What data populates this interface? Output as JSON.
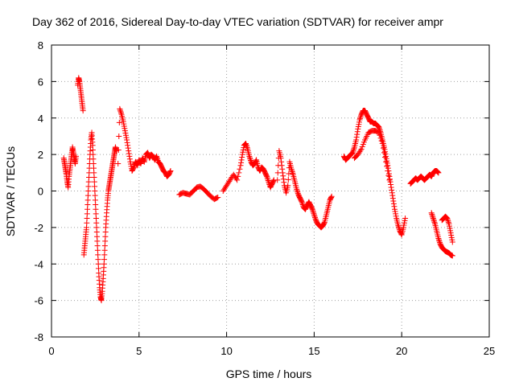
{
  "chart_data": {
    "type": "scatter",
    "title": "Day 362 of 2016, Sidereal Day-to-day VTEC variation (SDTVAR) for receiver ampr",
    "xlabel": "GPS time / hours",
    "ylabel": "SDTVAR / TECUs",
    "xlim": [
      0,
      25
    ],
    "ylim": [
      -8,
      8
    ],
    "xticks": [
      0,
      5,
      10,
      15,
      20,
      25
    ],
    "yticks": [
      -8,
      -6,
      -4,
      -2,
      0,
      2,
      4,
      6,
      8
    ],
    "grid": true,
    "marker": "+",
    "color": "#ff0000",
    "series": [
      {
        "name": "SDTVAR",
        "segments": [
          [
            [
              0.7,
              1.8
            ],
            [
              0.75,
              1.5
            ],
            [
              0.8,
              1.2
            ],
            [
              0.85,
              0.9
            ],
            [
              0.9,
              0.5
            ],
            [
              0.95,
              0.2
            ],
            [
              1.0,
              0.8
            ],
            [
              1.05,
              1.2
            ],
            [
              1.1,
              1.6
            ],
            [
              1.15,
              2.0
            ],
            [
              1.2,
              2.4
            ],
            [
              1.25,
              2.1
            ],
            [
              1.3,
              1.8
            ],
            [
              1.35,
              1.5
            ],
            [
              1.4,
              1.9
            ]
          ],
          [
            [
              1.5,
              5.8
            ],
            [
              1.55,
              6.2
            ],
            [
              1.6,
              6.0
            ],
            [
              1.65,
              5.6
            ],
            [
              1.7,
              5.2
            ],
            [
              1.75,
              4.8
            ],
            [
              1.8,
              4.4
            ]
          ],
          [
            [
              1.85,
              -3.5
            ],
            [
              1.9,
              -3.0
            ],
            [
              1.95,
              -2.5
            ],
            [
              2.0,
              -2.0
            ],
            [
              2.05,
              -1.0
            ],
            [
              2.1,
              0.0
            ],
            [
              2.15,
              1.0
            ],
            [
              2.2,
              2.0
            ],
            [
              2.25,
              2.8
            ],
            [
              2.3,
              3.2
            ],
            [
              2.35,
              2.5
            ],
            [
              2.4,
              1.5
            ],
            [
              2.45,
              0.5
            ],
            [
              2.5,
              -0.5
            ],
            [
              2.55,
              -1.5
            ],
            [
              2.6,
              -2.5
            ],
            [
              2.65,
              -3.5
            ],
            [
              2.7,
              -4.5
            ],
            [
              2.75,
              -5.3
            ],
            [
              2.8,
              -5.8
            ],
            [
              2.85,
              -6.0
            ],
            [
              2.9,
              -5.5
            ],
            [
              2.95,
              -4.8
            ],
            [
              3.0,
              -4.0
            ],
            [
              3.05,
              -3.0
            ],
            [
              3.1,
              -2.0
            ],
            [
              3.15,
              -1.2
            ],
            [
              3.2,
              -0.5
            ],
            [
              3.25,
              0.0
            ],
            [
              3.3,
              0.3
            ],
            [
              3.35,
              0.6
            ],
            [
              3.4,
              0.9
            ],
            [
              3.45,
              1.2
            ],
            [
              3.5,
              1.5
            ],
            [
              3.55,
              1.8
            ],
            [
              3.6,
              2.1
            ],
            [
              3.65,
              2.4
            ],
            [
              3.7,
              2.2
            ]
          ],
          [
            [
              3.8,
              1.5
            ],
            [
              3.9,
              4.5
            ],
            [
              4.0,
              4.2
            ],
            [
              4.1,
              3.8
            ],
            [
              4.2,
              3.3
            ],
            [
              4.3,
              2.8
            ],
            [
              4.4,
              2.2
            ],
            [
              4.5,
              1.6
            ],
            [
              4.6,
              1.1
            ],
            [
              4.7,
              1.3
            ],
            [
              4.8,
              1.6
            ],
            [
              4.9,
              1.4
            ],
            [
              5.0,
              1.7
            ],
            [
              5.1,
              1.5
            ],
            [
              5.2,
              1.8
            ],
            [
              5.3,
              1.6
            ],
            [
              5.4,
              2.0
            ],
            [
              5.5,
              2.1
            ],
            [
              5.6,
              1.8
            ],
            [
              5.7,
              2.0
            ],
            [
              5.8,
              1.9
            ],
            [
              5.9,
              1.7
            ],
            [
              6.0,
              1.9
            ],
            [
              6.1,
              1.6
            ],
            [
              6.2,
              1.5
            ],
            [
              6.3,
              1.3
            ],
            [
              6.4,
              1.1
            ],
            [
              6.5,
              1.0
            ],
            [
              6.6,
              0.8
            ],
            [
              6.7,
              0.9
            ],
            [
              6.8,
              1.1
            ]
          ],
          [
            [
              7.3,
              -0.2
            ],
            [
              7.5,
              -0.1
            ],
            [
              7.7,
              -0.15
            ],
            [
              7.9,
              -0.2
            ],
            [
              8.1,
              0.0
            ],
            [
              8.3,
              0.2
            ],
            [
              8.5,
              0.25
            ],
            [
              8.7,
              0.1
            ],
            [
              8.9,
              -0.1
            ],
            [
              9.1,
              -0.3
            ],
            [
              9.3,
              -0.45
            ],
            [
              9.5,
              -0.35
            ]
          ],
          [
            [
              9.8,
              0.0
            ],
            [
              10.0,
              0.3
            ],
            [
              10.2,
              0.6
            ],
            [
              10.4,
              0.9
            ],
            [
              10.6,
              0.6
            ],
            [
              10.8,
              1.4
            ],
            [
              10.9,
              2.0
            ],
            [
              11.0,
              2.5
            ],
            [
              11.1,
              2.6
            ],
            [
              11.2,
              2.3
            ],
            [
              11.3,
              1.9
            ],
            [
              11.4,
              1.6
            ],
            [
              11.5,
              1.4
            ],
            [
              11.6,
              1.5
            ],
            [
              11.7,
              1.7
            ],
            [
              11.8,
              1.3
            ],
            [
              11.9,
              1.1
            ],
            [
              12.0,
              1.3
            ],
            [
              12.1,
              1.2
            ],
            [
              12.2,
              1.0
            ],
            [
              12.3,
              0.8
            ],
            [
              12.4,
              0.5
            ],
            [
              12.5,
              0.2
            ],
            [
              12.6,
              0.4
            ],
            [
              12.7,
              0.6
            ]
          ],
          [
            [
              12.9,
              0.6
            ],
            [
              13.0,
              2.2
            ],
            [
              13.1,
              1.8
            ],
            [
              13.2,
              1.0
            ],
            [
              13.3,
              0.3
            ],
            [
              13.4,
              -0.1
            ],
            [
              13.5,
              0.3
            ],
            [
              13.6,
              1.6
            ],
            [
              13.7,
              1.2
            ],
            [
              13.8,
              0.9
            ],
            [
              13.9,
              0.5
            ],
            [
              14.0,
              0.1
            ],
            [
              14.1,
              -0.2
            ],
            [
              14.2,
              -0.4
            ],
            [
              14.3,
              -0.6
            ],
            [
              14.4,
              -0.9
            ],
            [
              14.5,
              -1.0
            ],
            [
              14.6,
              -0.8
            ],
            [
              14.7,
              -0.6
            ],
            [
              14.8,
              -0.8
            ],
            [
              14.9,
              -1.0
            ],
            [
              15.0,
              -1.3
            ],
            [
              15.1,
              -1.6
            ],
            [
              15.2,
              -1.8
            ],
            [
              15.3,
              -1.9
            ],
            [
              15.4,
              -2.0
            ],
            [
              15.5,
              -1.9
            ],
            [
              15.6,
              -1.7
            ],
            [
              15.7,
              -1.3
            ],
            [
              15.8,
              -0.9
            ],
            [
              15.9,
              -0.5
            ],
            [
              16.0,
              -0.3
            ]
          ],
          [
            [
              16.7,
              1.9
            ],
            [
              16.8,
              1.7
            ],
            [
              16.9,
              1.8
            ],
            [
              17.0,
              1.9
            ],
            [
              17.1,
              2.0
            ],
            [
              17.2,
              2.1
            ],
            [
              17.3,
              2.4
            ],
            [
              17.4,
              2.8
            ],
            [
              17.5,
              3.4
            ],
            [
              17.6,
              3.9
            ],
            [
              17.7,
              4.2
            ],
            [
              17.8,
              4.4
            ],
            [
              17.9,
              4.4
            ],
            [
              18.0,
              4.2
            ],
            [
              18.1,
              4.0
            ],
            [
              18.2,
              3.8
            ],
            [
              18.3,
              3.8
            ],
            [
              18.4,
              3.7
            ],
            [
              18.5,
              3.7
            ],
            [
              18.6,
              3.6
            ],
            [
              18.7,
              3.5
            ],
            [
              18.8,
              3.2
            ],
            [
              18.9,
              2.8
            ],
            [
              19.0,
              2.4
            ],
            [
              19.1,
              1.9
            ],
            [
              19.2,
              1.4
            ],
            [
              19.3,
              0.8
            ],
            [
              19.4,
              0.2
            ],
            [
              19.5,
              -0.4
            ],
            [
              19.6,
              -1.0
            ],
            [
              19.7,
              -1.5
            ],
            [
              19.8,
              -1.9
            ],
            [
              19.9,
              -2.2
            ],
            [
              20.0,
              -2.4
            ],
            [
              20.1,
              -2.0
            ],
            [
              20.2,
              -1.5
            ]
          ],
          [
            [
              17.3,
              1.8
            ],
            [
              17.5,
              2.0
            ],
            [
              17.7,
              2.3
            ],
            [
              17.9,
              2.8
            ],
            [
              18.1,
              3.2
            ],
            [
              18.3,
              3.3
            ],
            [
              18.5,
              3.3
            ],
            [
              18.7,
              3.2
            ],
            [
              18.9,
              2.6
            ],
            [
              19.1,
              1.6
            ],
            [
              19.3,
              0.6
            ]
          ],
          [
            [
              20.5,
              0.4
            ],
            [
              20.6,
              0.5
            ],
            [
              20.7,
              0.6
            ],
            [
              20.8,
              0.7
            ],
            [
              20.9,
              0.6
            ],
            [
              21.0,
              0.7
            ],
            [
              21.1,
              0.8
            ],
            [
              21.2,
              0.7
            ],
            [
              21.3,
              0.6
            ],
            [
              21.4,
              0.7
            ],
            [
              21.5,
              0.8
            ],
            [
              21.6,
              0.9
            ],
            [
              21.7,
              0.8
            ],
            [
              21.8,
              1.0
            ],
            [
              21.9,
              1.1
            ],
            [
              22.0,
              1.1
            ],
            [
              22.1,
              1.0
            ]
          ],
          [
            [
              21.7,
              -1.2
            ],
            [
              21.8,
              -1.5
            ],
            [
              21.9,
              -1.8
            ],
            [
              22.0,
              -2.2
            ],
            [
              22.1,
              -2.6
            ],
            [
              22.2,
              -2.9
            ],
            [
              22.3,
              -3.1
            ],
            [
              22.4,
              -3.2
            ],
            [
              22.5,
              -3.3
            ],
            [
              22.6,
              -3.35
            ],
            [
              22.7,
              -3.4
            ],
            [
              22.8,
              -3.5
            ],
            [
              22.9,
              -3.55
            ]
          ],
          [
            [
              22.3,
              -1.6
            ],
            [
              22.4,
              -1.5
            ],
            [
              22.5,
              -1.4
            ],
            [
              22.6,
              -1.5
            ],
            [
              22.7,
              -1.8
            ],
            [
              22.8,
              -2.3
            ],
            [
              22.9,
              -2.8
            ]
          ]
        ]
      }
    ]
  }
}
